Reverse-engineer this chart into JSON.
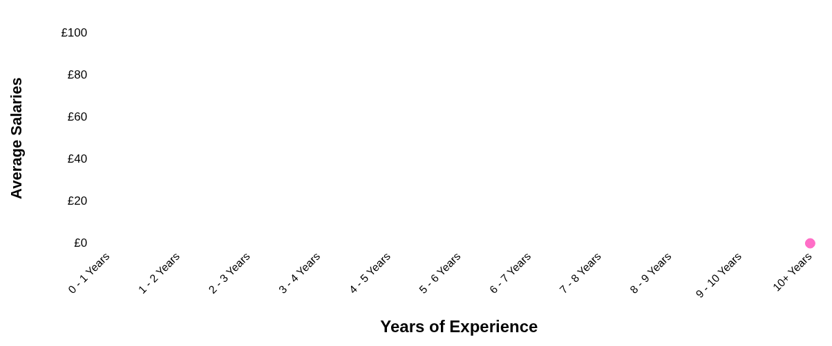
{
  "chart_data": {
    "type": "line",
    "xlabel": "Years of Experience",
    "ylabel": "Average Salaries",
    "categories": [
      "0 - 1 Years",
      "1 - 2 Years",
      "2 - 3 Years",
      "3 - 4 Years",
      "4 - 5 Years",
      "5 - 6 Years",
      "6 - 7 Years",
      "7 - 8 Years",
      "8 - 9 Years",
      "9 - 10 Years",
      "10+ Years"
    ],
    "series": [
      {
        "color": "#ff6ec7",
        "values": [
          null,
          null,
          null,
          null,
          null,
          null,
          null,
          null,
          null,
          null,
          0
        ]
      }
    ],
    "ylim": [
      0,
      100
    ],
    "yticks": [
      {
        "value": 0,
        "label": "£0"
      },
      {
        "value": 20,
        "label": "£20"
      },
      {
        "value": 40,
        "label": "£40"
      },
      {
        "value": 60,
        "label": "£60"
      },
      {
        "value": 80,
        "label": "£80"
      },
      {
        "value": 100,
        "label": "£100"
      }
    ],
    "grid": false,
    "legend": false,
    "marker": "circle"
  }
}
